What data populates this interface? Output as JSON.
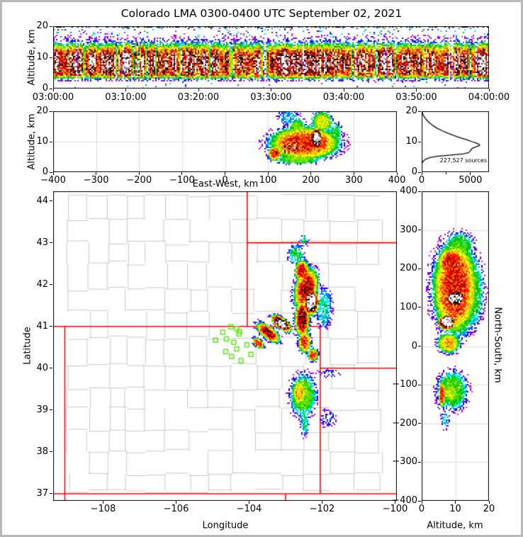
{
  "title": "Colorado LMA 0300-0400 UTC September 02, 2021",
  "colors": {
    "background": "#FFFFFF",
    "frame_border": "#B9B9B9",
    "axis": "#000000",
    "grid": "#DEDEDE",
    "county_line": "#C8C8C8",
    "state_border": "#FF0000",
    "station_marker": "#55E600",
    "histogram_line": "#000000",
    "density_palette": [
      "#FF00FF",
      "#9900FF",
      "#1100FF",
      "#0077FF",
      "#00E8E8",
      "#00C800",
      "#55DD00",
      "#B4E600",
      "#FFFF00",
      "#FFAA00",
      "#FF4400",
      "#E60000",
      "#A00000",
      "#000000",
      "#8C8C8C",
      "#FFFFFF"
    ]
  },
  "chart_data": [
    {
      "id": "time_height",
      "type": "heatmap",
      "xlabel": "",
      "ylabel": "Altitude, km",
      "x_range": [
        "03:00:00",
        "04:00:00"
      ],
      "y_range_km": [
        0,
        20
      ],
      "x_ticks": [
        "03:00:00",
        "03:10:00",
        "03:20:00",
        "03:30:00",
        "03:40:00",
        "03:50:00",
        "04:00:00"
      ],
      "y_tick_values": [
        0,
        10,
        20
      ],
      "y_ticks": [
        "0",
        "10",
        "20"
      ],
      "band": {
        "peak_alt_km": 8.2,
        "spread_km": 6.2,
        "peak_level": 0.78,
        "column_dropout_prob": 0.045,
        "description": "Continuous dense lightning-source band 4-15 km for the whole hour; black core 6-10 km with white/gray density maxima; sparse blue/cyan sources 15-20 km and below 4 km; dark dashed row at 20 km"
      }
    },
    {
      "id": "east_west_altitude",
      "type": "heatmap",
      "xlabel": "East-West, km",
      "ylabel": "Altitude, km",
      "x_range_km": [
        -400,
        400
      ],
      "y_range_km": [
        0,
        20
      ],
      "x_tick_values": [
        -400,
        -300,
        -200,
        -100,
        0,
        100,
        200,
        300,
        400
      ],
      "x_ticks": [
        "−400",
        "−300",
        "−200",
        "−100",
        "0",
        "100",
        "200",
        "300",
        "400"
      ],
      "y_tick_values": [
        0,
        10,
        20
      ],
      "y_ticks": [
        "0",
        "10",
        "20"
      ],
      "grid_x_values": [
        -300,
        -200,
        -100,
        0,
        100,
        200,
        300
      ],
      "grid_y_values": [
        10
      ],
      "cores": [
        {
          "x": 185,
          "y": 9.5,
          "rx": 80,
          "ry": 5.4,
          "a": 0.7
        },
        {
          "x": 116,
          "y": 6.2,
          "rx": 16,
          "ry": 2.4,
          "a": 0.72
        },
        {
          "x": 213,
          "y": 11,
          "rx": 15,
          "ry": 3.4,
          "a": 1.0
        },
        {
          "x": 139,
          "y": 7.6,
          "rx": 3.6,
          "ry": 2.0,
          "a": 0.95
        },
        {
          "x": 150,
          "y": 7.9,
          "rx": 3.2,
          "ry": 2.2,
          "a": 0.95
        },
        {
          "x": 163,
          "y": 8.0,
          "rx": 3.8,
          "ry": 2.4,
          "a": 0.96
        },
        {
          "x": 226,
          "y": 16.5,
          "rx": 24,
          "ry": 3.4,
          "a": 0.52
        },
        {
          "x": 168,
          "y": 14.5,
          "rx": 20,
          "ry": 3.2,
          "a": 0.42
        },
        {
          "x": 256,
          "y": 12.5,
          "rx": 16,
          "ry": 4.0,
          "a": 0.36
        },
        {
          "x": 170,
          "y": 4.3,
          "rx": 55,
          "ry": 1.8,
          "a": 0.42
        },
        {
          "x": 148,
          "y": 18.0,
          "rx": 26,
          "ry": 2.6,
          "a": 0.26
        }
      ]
    },
    {
      "id": "altitude_histogram",
      "type": "line",
      "xlabel": "",
      "ylabel": "",
      "x_range": [
        0,
        6900
      ],
      "y_range_km": [
        0,
        20
      ],
      "x_tick_values": [
        0,
        5000
      ],
      "x_ticks": [
        "0",
        "5000"
      ],
      "x_minor_tick_values": [
        2500
      ],
      "y_tick_values": [
        0,
        10,
        20
      ],
      "y_ticks": [
        "0",
        "10",
        "20"
      ],
      "annotation": "227,527 sources",
      "points_alt_km_count": [
        [
          2.6,
          0
        ],
        [
          3,
          50
        ],
        [
          3.6,
          150
        ],
        [
          4.2,
          380
        ],
        [
          4.8,
          850
        ],
        [
          5.2,
          1600
        ],
        [
          5.6,
          3000
        ],
        [
          6,
          4300
        ],
        [
          6.4,
          4800
        ],
        [
          7,
          5000
        ],
        [
          7.6,
          5100
        ],
        [
          8,
          5300
        ],
        [
          8.4,
          5650
        ],
        [
          8.8,
          5950
        ],
        [
          9.2,
          5850
        ],
        [
          9.6,
          5550
        ],
        [
          10,
          5150
        ],
        [
          10.6,
          4650
        ],
        [
          11.2,
          4050
        ],
        [
          12,
          3300
        ],
        [
          12.8,
          2650
        ],
        [
          13.6,
          2100
        ],
        [
          14.4,
          1600
        ],
        [
          15.2,
          1200
        ],
        [
          16,
          880
        ],
        [
          16.8,
          600
        ],
        [
          17.6,
          390
        ],
        [
          18.4,
          220
        ],
        [
          19.2,
          100
        ],
        [
          19.8,
          35
        ],
        [
          20,
          10
        ]
      ]
    },
    {
      "id": "map",
      "type": "heatmap",
      "xlabel": "Longitude",
      "ylabel": "Latitude",
      "lon_range": [
        -109.37,
        -99.95
      ],
      "lat_range": [
        36.83,
        44.23
      ],
      "x_tick_values": [
        -108,
        -106,
        -104,
        -102,
        -100
      ],
      "x_ticks": [
        "−108",
        "−106",
        "−104",
        "−102",
        "−100"
      ],
      "y_tick_values": [
        37,
        38,
        39,
        40,
        41,
        42,
        43,
        44
      ],
      "y_ticks": [
        "37",
        "38",
        "39",
        "40",
        "41",
        "42",
        "43",
        "44"
      ],
      "state_borders_lon_lat": [
        [
          [
            -109.05,
            41.0
          ],
          [
            -109.05,
            36.83
          ]
        ],
        [
          [
            -109.37,
            41.0
          ],
          [
            -102.05,
            41.0
          ]
        ],
        [
          [
            -104.05,
            44.23
          ],
          [
            -104.05,
            41.0
          ]
        ],
        [
          [
            -104.05,
            43.0
          ],
          [
            -99.95,
            43.0
          ]
        ],
        [
          [
            -102.05,
            41.0
          ],
          [
            -102.05,
            37.0
          ]
        ],
        [
          [
            -102.05,
            40.0
          ],
          [
            -99.95,
            40.0
          ]
        ],
        [
          [
            -109.37,
            37.0
          ],
          [
            -99.95,
            37.0
          ]
        ],
        [
          [
            -103.0,
            37.0
          ],
          [
            -103.0,
            36.83
          ]
        ]
      ],
      "stations_lon_lat": [
        [
          -104.5,
          40.99
        ],
        [
          -104.34,
          40.95
        ],
        [
          -104.26,
          40.88
        ],
        [
          -104.72,
          40.86
        ],
        [
          -104.28,
          40.82
        ],
        [
          -104.92,
          40.67
        ],
        [
          -104.62,
          40.7
        ],
        [
          -104.42,
          40.62
        ],
        [
          -104.06,
          40.56
        ],
        [
          -104.64,
          40.4
        ],
        [
          -104.34,
          40.46
        ],
        [
          -103.95,
          40.33
        ],
        [
          -104.22,
          40.18
        ],
        [
          -104.48,
          40.28
        ]
      ],
      "cores": [
        {
          "x": -102.3,
          "y": 41.58,
          "rx": 0.2,
          "ry": 0.3,
          "a": 1.0
        },
        {
          "x": -102.44,
          "y": 41.9,
          "rx": 0.3,
          "ry": 0.5,
          "a": 0.74,
          "rot": -20
        },
        {
          "x": -102.55,
          "y": 42.32,
          "rx": 0.2,
          "ry": 0.26,
          "a": 0.72
        },
        {
          "x": -102.72,
          "y": 42.72,
          "rx": 0.24,
          "ry": 0.24,
          "a": 0.33
        },
        {
          "x": -102.5,
          "y": 43.05,
          "rx": 0.12,
          "ry": 0.14,
          "a": 0.3
        },
        {
          "x": -103.12,
          "y": 41.07,
          "rx": 0.3,
          "ry": 0.13,
          "a": 0.97,
          "rot": -33
        },
        {
          "x": -103.48,
          "y": 40.85,
          "rx": 0.36,
          "ry": 0.15,
          "a": 0.76,
          "rot": -33
        },
        {
          "x": -103.75,
          "y": 40.6,
          "rx": 0.17,
          "ry": 0.1,
          "a": 0.72,
          "rot": -33
        },
        {
          "x": -102.55,
          "y": 41.18,
          "rx": 0.2,
          "ry": 0.42,
          "a": 0.8
        },
        {
          "x": -102.48,
          "y": 40.63,
          "rx": 0.17,
          "ry": 0.26,
          "a": 0.68
        },
        {
          "x": -102.25,
          "y": 40.32,
          "rx": 0.14,
          "ry": 0.15,
          "a": 0.7
        },
        {
          "x": -101.95,
          "y": 41.45,
          "rx": 0.22,
          "ry": 0.5,
          "a": 0.3
        },
        {
          "x": -102.62,
          "y": 39.42,
          "rx": 0.2,
          "ry": 0.32,
          "a": 0.58
        },
        {
          "x": -102.52,
          "y": 39.35,
          "rx": 0.36,
          "ry": 0.52,
          "a": 0.42
        },
        {
          "x": -102.48,
          "y": 38.72,
          "rx": 0.12,
          "ry": 0.34,
          "a": 0.3
        },
        {
          "x": -101.85,
          "y": 39.88,
          "rx": 0.34,
          "ry": 0.1,
          "a": 0.17
        },
        {
          "x": -101.85,
          "y": 38.8,
          "rx": 0.24,
          "ry": 0.22,
          "a": 0.18
        }
      ]
    },
    {
      "id": "north_south_altitude",
      "type": "heatmap",
      "xlabel": "Altitude, km",
      "ylabel_right": "North-South, km",
      "x_range_km": [
        0,
        20
      ],
      "y_range_km": [
        -400,
        400
      ],
      "x_tick_values": [
        0,
        10,
        20
      ],
      "x_ticks": [
        "0",
        "10",
        "20"
      ],
      "y_tick_values": [
        400,
        300,
        200,
        100,
        0,
        -100,
        -200,
        -300,
        -400
      ],
      "y_ticks": [
        "400",
        "300",
        "200",
        "100",
        "0",
        "−100",
        "−200",
        "−300",
        "−400"
      ],
      "grid_x_values": [
        10
      ],
      "grid_y_values": [
        -300,
        -200,
        -100,
        0,
        100,
        200,
        300
      ],
      "cores": [
        {
          "x": 10,
          "y": 150,
          "rx": 6.6,
          "ry": 118,
          "a": 0.7
        },
        {
          "x": 10,
          "y": 124,
          "rx": 3.2,
          "ry": 22,
          "a": 1.0
        },
        {
          "x": 7.5,
          "y": 62,
          "rx": 2.6,
          "ry": 20,
          "a": 1.0
        },
        {
          "x": 9,
          "y": 215,
          "rx": 4.2,
          "ry": 42,
          "a": 0.72
        },
        {
          "x": 11,
          "y": 258,
          "rx": 4.6,
          "ry": 36,
          "a": 0.38
        },
        {
          "x": 15,
          "y": 140,
          "rx": 3.6,
          "ry": 95,
          "a": 0.36
        },
        {
          "x": 8,
          "y": 8,
          "rx": 3.4,
          "ry": 26,
          "a": 0.58
        },
        {
          "x": 9,
          "y": -115,
          "rx": 4.6,
          "ry": 52,
          "a": 0.4
        },
        {
          "x": 8.5,
          "y": -120,
          "rx": 3.0,
          "ry": 30,
          "a": 0.48
        },
        {
          "x": 6,
          "y": -125,
          "rx": 0.9,
          "ry": 34,
          "a": 0.72
        },
        {
          "x": 7,
          "y": -190,
          "rx": 1.3,
          "ry": 24,
          "a": 0.28
        }
      ]
    }
  ]
}
